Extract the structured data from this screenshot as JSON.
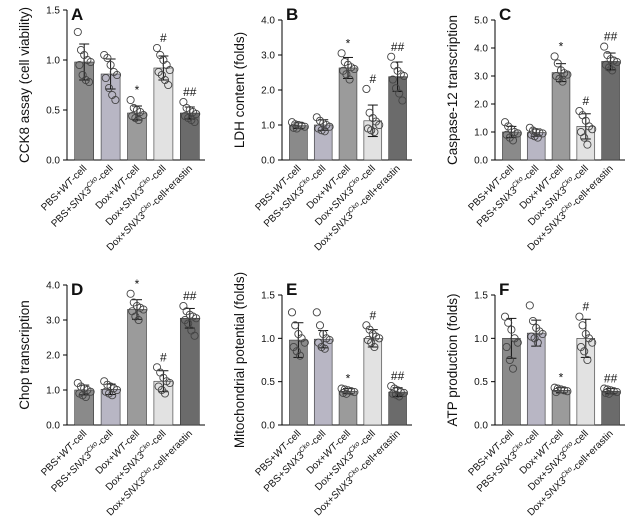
{
  "colors": {
    "wt": "#8a8a8a",
    "sko": "#b8b6c4",
    "dox_wt": "#9b9b9b",
    "dox_sko": "#e2e2e2",
    "erastin": "#6b6b6b"
  },
  "categories": [
    {
      "pre": "PBS+",
      "em": "WT",
      "sup": "",
      "post": "-cell"
    },
    {
      "pre": "PBS+",
      "em": "SNX3",
      "sup": "Cko",
      "post": "-cell"
    },
    {
      "pre": "Dox+",
      "em": "WT",
      "sup": "",
      "post": "-cell"
    },
    {
      "pre": "Dox+",
      "em": "SNX3",
      "sup": "Cko",
      "post": "-cell"
    },
    {
      "pre": "Dox+",
      "em": "SNX3",
      "sup": "Cko",
      "post": "-cell+erastin"
    }
  ],
  "chart_data": [
    {
      "type": "bar",
      "panel": "A",
      "ylabel": "CCK8 assay (cell viability)",
      "ylim": [
        0,
        1.5
      ],
      "yticks": [
        0.0,
        0.5,
        1.0,
        1.5
      ],
      "tick_decimals": 1,
      "values": [
        0.98,
        0.86,
        0.47,
        0.92,
        0.47
      ],
      "errors": [
        0.18,
        0.15,
        0.07,
        0.12,
        0.06
      ],
      "points": [
        [
          1.28,
          1.1,
          1.05,
          1.0,
          0.98,
          0.95,
          0.85,
          0.8,
          0.78
        ],
        [
          1.05,
          1.02,
          0.95,
          0.88,
          0.85,
          0.82,
          0.72,
          0.65,
          0.6
        ],
        [
          0.6,
          0.52,
          0.5,
          0.48,
          0.45,
          0.44,
          0.42,
          0.4
        ],
        [
          1.12,
          1.05,
          1.0,
          0.95,
          0.9,
          0.88,
          0.85,
          0.8,
          0.75
        ],
        [
          0.58,
          0.52,
          0.5,
          0.48,
          0.46,
          0.44,
          0.42,
          0.4,
          0.38
        ]
      ],
      "marks": [
        "",
        "",
        "*",
        "#",
        "##"
      ]
    },
    {
      "type": "bar",
      "panel": "B",
      "ylabel": "LDH content (folds)",
      "ylim": [
        0,
        4.0
      ],
      "yticks": [
        0.0,
        1.0,
        2.0,
        3.0,
        4.0
      ],
      "tick_decimals": 1,
      "values": [
        0.98,
        1.0,
        2.63,
        1.12,
        2.38
      ],
      "errors": [
        0.08,
        0.15,
        0.3,
        0.45,
        0.42
      ],
      "points": [
        [
          1.08,
          1.02,
          1.0,
          0.98,
          0.95,
          0.92,
          0.9
        ],
        [
          1.22,
          1.12,
          1.05,
          1.0,
          0.95,
          0.9,
          0.85,
          0.82
        ],
        [
          3.05,
          2.8,
          2.72,
          2.65,
          2.6,
          2.55,
          2.45,
          2.3
        ],
        [
          2.03,
          1.35,
          1.2,
          1.1,
          1.0,
          0.9,
          0.85,
          0.8
        ],
        [
          2.95,
          2.7,
          2.55,
          2.45,
          2.4,
          2.3,
          2.05,
          1.9,
          1.7
        ]
      ],
      "marks": [
        "",
        "",
        "*",
        "#",
        "##"
      ]
    },
    {
      "type": "bar",
      "panel": "C",
      "ylabel": "Caspase-12 transcription",
      "ylim": [
        0,
        5.0
      ],
      "yticks": [
        0.0,
        1.0,
        2.0,
        3.0,
        4.0,
        5.0
      ],
      "tick_decimals": 1,
      "values": [
        1.0,
        0.98,
        3.12,
        1.2,
        3.52
      ],
      "errors": [
        0.2,
        0.13,
        0.32,
        0.45,
        0.3
      ],
      "points": [
        [
          1.35,
          1.2,
          1.1,
          1.0,
          0.95,
          0.9,
          0.8,
          0.7
        ],
        [
          1.15,
          1.05,
          1.0,
          0.98,
          0.95,
          0.9,
          0.85,
          0.8
        ],
        [
          3.7,
          3.45,
          3.2,
          3.1,
          3.05,
          3.0,
          2.9,
          2.8
        ],
        [
          1.75,
          1.6,
          1.4,
          1.2,
          1.1,
          1.0,
          0.8,
          0.55
        ],
        [
          4.05,
          3.75,
          3.6,
          3.55,
          3.5,
          3.4,
          3.3,
          3.2
        ]
      ],
      "marks": [
        "",
        "",
        "*",
        "#",
        "##"
      ]
    },
    {
      "type": "bar",
      "panel": "D",
      "ylabel": "Chop transcription",
      "ylim": [
        0,
        4.0
      ],
      "yticks": [
        0.0,
        1.0,
        2.0,
        3.0,
        4.0
      ],
      "tick_decimals": 1,
      "values": [
        1.0,
        1.02,
        3.3,
        1.25,
        3.05
      ],
      "errors": [
        0.14,
        0.15,
        0.28,
        0.3,
        0.28
      ],
      "points": [
        [
          1.2,
          1.1,
          1.05,
          1.0,
          0.95,
          0.9,
          0.85,
          0.8
        ],
        [
          1.25,
          1.15,
          1.1,
          1.05,
          1.0,
          0.95,
          0.9,
          0.85
        ],
        [
          3.75,
          3.5,
          3.4,
          3.35,
          3.3,
          3.25,
          3.1,
          3.0
        ],
        [
          1.65,
          1.5,
          1.35,
          1.25,
          1.2,
          1.1,
          1.0,
          0.9
        ],
        [
          3.4,
          3.25,
          3.15,
          3.1,
          3.05,
          3.0,
          2.9,
          2.7,
          2.55
        ]
      ],
      "marks": [
        "",
        "",
        "*",
        "#",
        "##"
      ]
    },
    {
      "type": "bar",
      "panel": "E",
      "ylabel": "Mitochondrial potential (folds)",
      "ylim": [
        0,
        1.5
      ],
      "yticks": [
        0.0,
        0.5,
        1.0,
        1.5
      ],
      "tick_decimals": 1,
      "values": [
        0.98,
        0.99,
        0.39,
        1.0,
        0.38
      ],
      "errors": [
        0.2,
        0.1,
        0.03,
        0.1,
        0.05
      ],
      "points": [
        [
          1.3,
          1.15,
          1.05,
          1.0,
          0.95,
          0.9,
          0.85,
          0.8
        ],
        [
          1.3,
          1.15,
          1.05,
          1.0,
          0.98,
          0.95,
          0.9,
          0.88
        ],
        [
          0.42,
          0.41,
          0.4,
          0.39,
          0.38,
          0.37,
          0.36
        ],
        [
          1.15,
          1.1,
          1.05,
          1.02,
          1.0,
          0.98,
          0.95,
          0.9
        ],
        [
          0.45,
          0.42,
          0.4,
          0.38,
          0.37,
          0.36,
          0.35,
          0.33
        ]
      ],
      "marks": [
        "",
        "",
        "*",
        "#",
        "##"
      ]
    },
    {
      "type": "bar",
      "panel": "F",
      "ylabel": "ATP production (folds)",
      "ylim": [
        0,
        1.5
      ],
      "yticks": [
        0.0,
        0.5,
        1.0,
        1.5
      ],
      "tick_decimals": 1,
      "values": [
        1.0,
        1.06,
        0.4,
        1.0,
        0.39
      ],
      "errors": [
        0.23,
        0.15,
        0.03,
        0.22,
        0.03
      ],
      "points": [
        [
          1.25,
          1.18,
          1.1,
          1.0,
          0.95,
          0.9,
          0.75,
          0.65
        ],
        [
          1.38,
          1.2,
          1.12,
          1.08,
          1.05,
          1.02,
          1.0,
          0.95
        ],
        [
          0.43,
          0.42,
          0.41,
          0.4,
          0.39,
          0.38
        ],
        [
          1.25,
          1.15,
          1.05,
          1.0,
          0.95,
          0.9,
          0.85,
          0.75
        ],
        [
          0.42,
          0.41,
          0.4,
          0.39,
          0.38,
          0.37,
          0.36
        ]
      ],
      "marks": [
        "",
        "",
        "*",
        "#",
        "##"
      ]
    }
  ]
}
